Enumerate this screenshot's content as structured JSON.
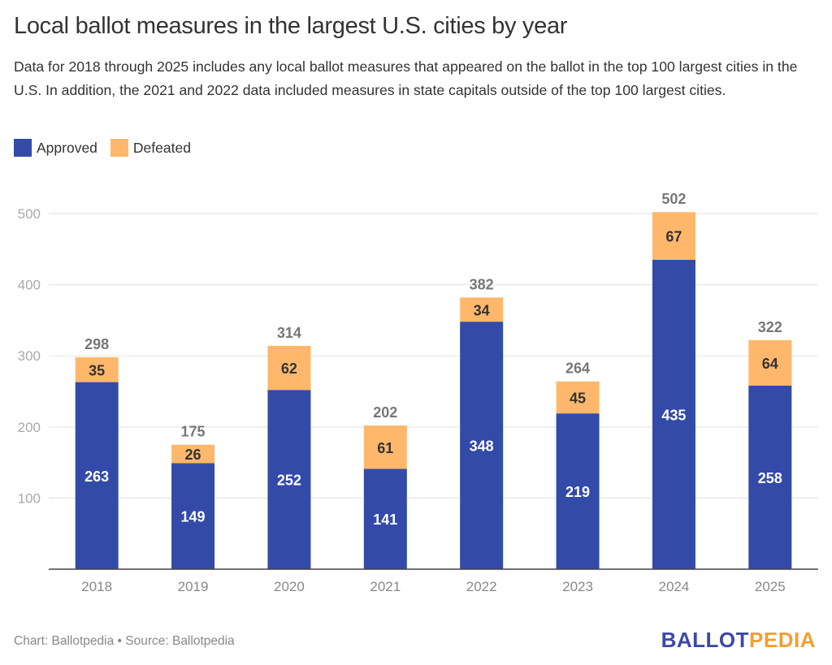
{
  "chart_data": {
    "type": "bar",
    "stacked": true,
    "title": "Local ballot measures in the largest U.S. cities by year",
    "subtitle": "Data for 2018 through 2025 includes any local ballot measures that appeared on the ballot in the top 100 largest cities in the U.S. In addition, the 2021 and 2022 data included measures in state capitals outside of the top 100 largest cities.",
    "xlabel": "",
    "ylabel": "",
    "categories": [
      "2018",
      "2019",
      "2020",
      "2021",
      "2022",
      "2023",
      "2024",
      "2025"
    ],
    "series": [
      {
        "name": "Approved",
        "color": "#334aa8",
        "values": [
          263,
          149,
          252,
          141,
          348,
          219,
          435,
          258
        ]
      },
      {
        "name": "Defeated",
        "color": "#ffb86b",
        "values": [
          35,
          26,
          62,
          61,
          34,
          45,
          67,
          64
        ]
      }
    ],
    "totals": [
      298,
      175,
      314,
      202,
      382,
      264,
      502,
      322
    ],
    "ylim": [
      0,
      500
    ],
    "yticks": [
      100,
      200,
      300,
      400,
      500
    ],
    "grid": true,
    "legend_position": "top-left",
    "footer": {
      "credit": "Chart: Ballotpedia • Source: Ballotpedia"
    }
  },
  "branding": {
    "logo_part1": "BALLOT",
    "logo_part2": "PEDIA"
  }
}
